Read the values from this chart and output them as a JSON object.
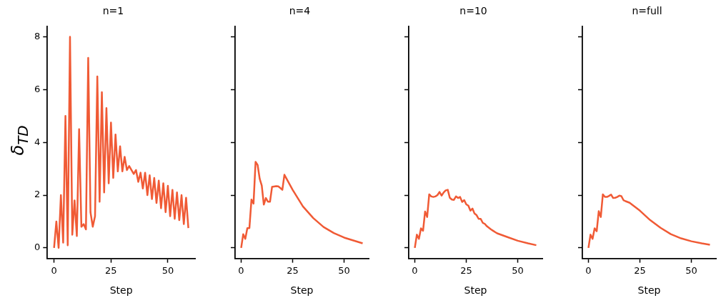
{
  "chart_data": [
    {
      "type": "line",
      "title": "n=1",
      "xlabel": "Step",
      "ylabel": "δ$_{TD}$",
      "xlim": [
        -2.95,
        61.95
      ],
      "ylim": [
        -0.4,
        8.4
      ],
      "xticks": [
        0,
        25,
        50
      ],
      "yticks": [
        0,
        2,
        4,
        6,
        8
      ],
      "grid": false,
      "legend": false,
      "series": [
        {
          "color": "#f05a35",
          "x": [
            0,
            1,
            2,
            3,
            4,
            5,
            6,
            7,
            8,
            9,
            10,
            11,
            12,
            13,
            14,
            15,
            16,
            17,
            18,
            19,
            20,
            21,
            22,
            23,
            24,
            25,
            26,
            27,
            28,
            29,
            30,
            31,
            32,
            33,
            34,
            35,
            36,
            37,
            38,
            39,
            40,
            41,
            42,
            43,
            44,
            45,
            46,
            47,
            48,
            49,
            50,
            51,
            52,
            53,
            54,
            55,
            56,
            57,
            58,
            59
          ],
          "values": [
            0,
            1.0,
            0,
            2.0,
            0.2,
            5.0,
            0.1,
            8.0,
            0.5,
            1.8,
            0.45,
            4.5,
            0.8,
            0.9,
            0.7,
            7.2,
            1.35,
            0.8,
            1.2,
            6.5,
            1.75,
            5.9,
            2.1,
            5.3,
            2.45,
            4.75,
            2.65,
            4.3,
            2.9,
            3.85,
            2.9,
            3.45,
            2.95,
            3.1,
            2.95,
            2.8,
            2.95,
            2.5,
            2.85,
            2.25,
            2.85,
            2.0,
            2.75,
            1.85,
            2.65,
            1.7,
            2.55,
            1.5,
            2.45,
            1.35,
            2.35,
            1.2,
            2.2,
            1.1,
            2.1,
            1.05,
            2.0,
            0.9,
            1.9,
            0.75
          ]
        }
      ]
    },
    {
      "type": "line",
      "title": "n=4",
      "xlabel": "Step",
      "xlim": [
        -2.95,
        61.95
      ],
      "ylim": [
        -0.4,
        8.4
      ],
      "xticks": [
        0,
        25,
        50
      ],
      "yticks": [
        0,
        2,
        4,
        6,
        8
      ],
      "tick_labels": "x",
      "grid": false,
      "legend": false,
      "series": [
        {
          "color": "#f05a35",
          "x": [
            0,
            1,
            2,
            3,
            4,
            5,
            6,
            7,
            8,
            9,
            10,
            11,
            12,
            13,
            14,
            15,
            17,
            18,
            19,
            20,
            21,
            25,
            30,
            35,
            40,
            45,
            50,
            59
          ],
          "values": [
            0,
            0.52,
            0.34,
            0.75,
            0.75,
            1.83,
            1.68,
            3.26,
            3.14,
            2.62,
            2.36,
            1.64,
            1.89,
            1.75,
            1.75,
            2.31,
            2.34,
            2.33,
            2.27,
            2.2,
            2.77,
            2.2,
            1.57,
            1.13,
            0.79,
            0.56,
            0.39,
            0.17
          ]
        }
      ]
    },
    {
      "type": "line",
      "title": "n=10",
      "xlabel": "Step",
      "xlim": [
        -2.95,
        61.95
      ],
      "ylim": [
        -0.4,
        8.4
      ],
      "xticks": [
        0,
        25,
        50
      ],
      "yticks": [
        0,
        2,
        4,
        6,
        8
      ],
      "tick_labels": "x",
      "grid": false,
      "legend": false,
      "series": [
        {
          "color": "#f05a35",
          "x": [
            0,
            1,
            2,
            3,
            4,
            5,
            6,
            7,
            8,
            9,
            10,
            11,
            12,
            13,
            14,
            15,
            16,
            17,
            18,
            19,
            20,
            21,
            22,
            23,
            24,
            25,
            26,
            27,
            28,
            29,
            30,
            31,
            32,
            33,
            34,
            35,
            36,
            37,
            38,
            39,
            40,
            45,
            50,
            55,
            59
          ],
          "values": [
            0,
            0.5,
            0.34,
            0.74,
            0.65,
            1.38,
            1.17,
            2.03,
            1.95,
            1.93,
            1.95,
            2.0,
            2.12,
            1.98,
            2.1,
            2.18,
            2.2,
            1.9,
            1.83,
            1.82,
            1.95,
            1.89,
            1.93,
            1.74,
            1.81,
            1.65,
            1.6,
            1.41,
            1.49,
            1.3,
            1.24,
            1.1,
            1.1,
            0.95,
            0.91,
            0.82,
            0.76,
            0.7,
            0.65,
            0.6,
            0.55,
            0.41,
            0.27,
            0.17,
            0.1
          ]
        }
      ]
    },
    {
      "type": "line",
      "title": "n=full",
      "xlabel": "Step",
      "xlim": [
        -2.95,
        61.95
      ],
      "ylim": [
        -0.4,
        8.4
      ],
      "xticks": [
        0,
        25,
        50
      ],
      "yticks": [
        0,
        2,
        4,
        6,
        8
      ],
      "tick_labels": "x",
      "grid": false,
      "legend": false,
      "series": [
        {
          "color": "#f05a35",
          "x": [
            0,
            1,
            2,
            3,
            4,
            5,
            6,
            7,
            8,
            9,
            10,
            11,
            12,
            13,
            14,
            15,
            16,
            17,
            18,
            20,
            25,
            30,
            35,
            40,
            45,
            50,
            55,
            59
          ],
          "values": [
            0,
            0.5,
            0.34,
            0.74,
            0.63,
            1.39,
            1.17,
            2.03,
            1.93,
            1.93,
            1.97,
            2.02,
            1.89,
            1.9,
            1.93,
            1.98,
            1.96,
            1.81,
            1.77,
            1.71,
            1.41,
            1.05,
            0.76,
            0.52,
            0.36,
            0.25,
            0.17,
            0.12
          ]
        }
      ]
    }
  ]
}
